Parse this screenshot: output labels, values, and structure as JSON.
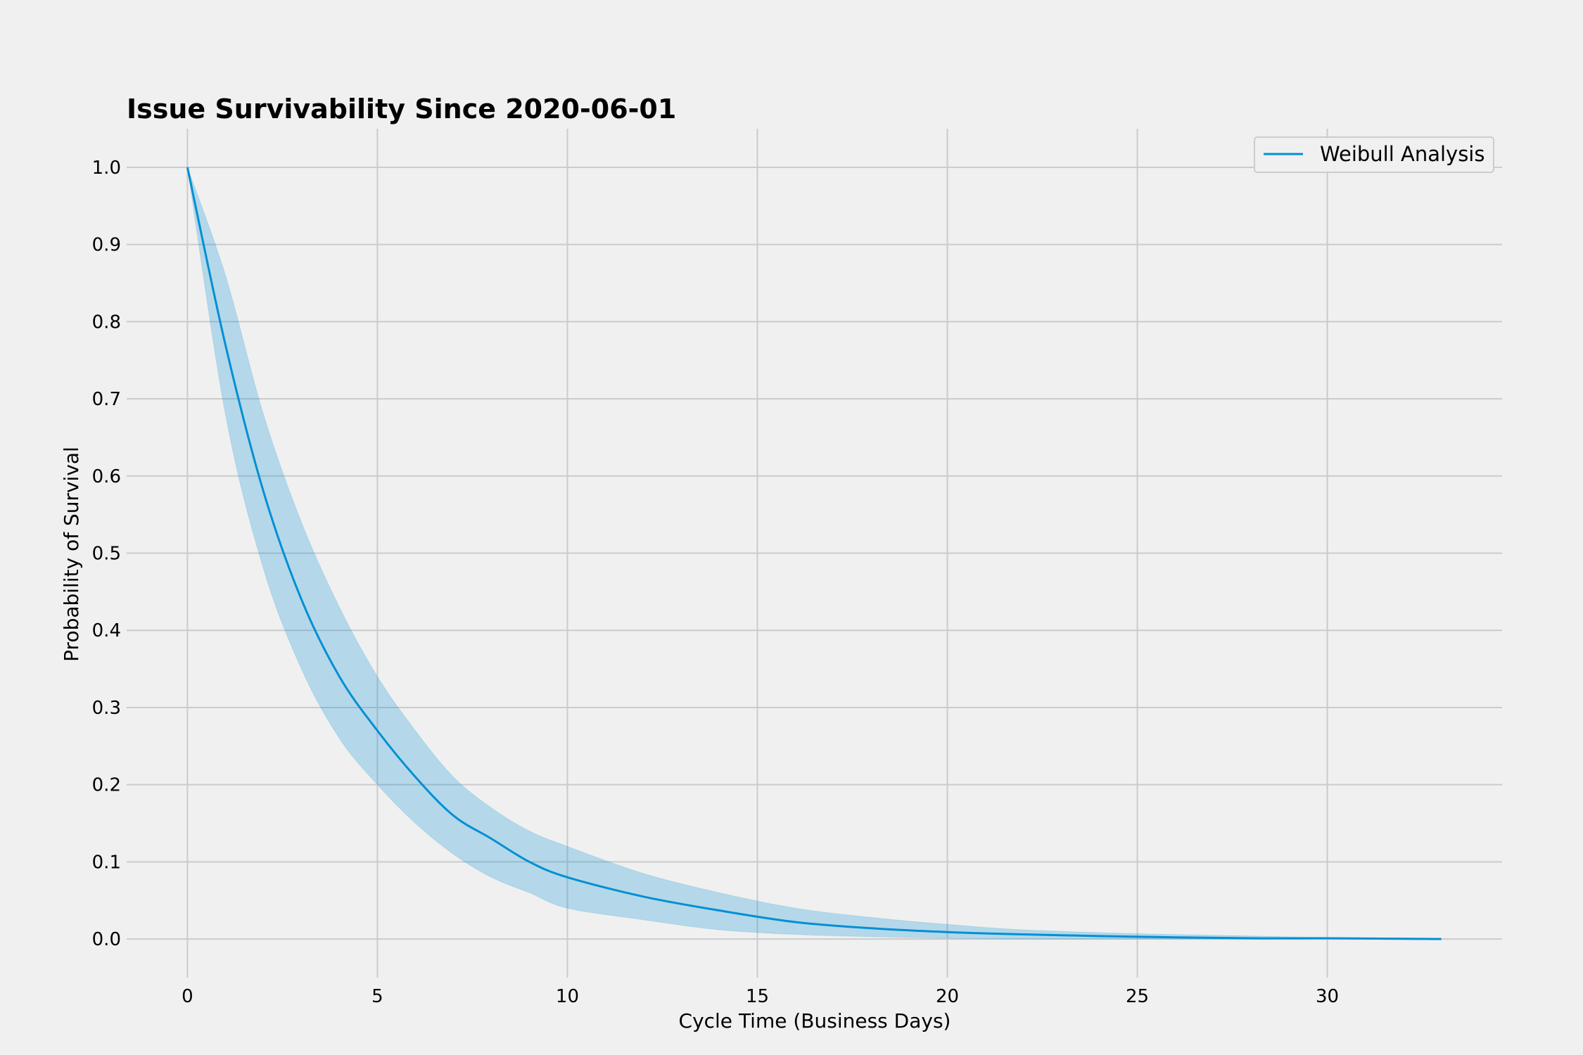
{
  "chart_data": {
    "type": "line",
    "title": "Issue Survivability Since 2020-06-01",
    "xlabel": "Cycle Time (Business Days)",
    "ylabel": "Probability of Survival",
    "xlim": [
      -1.6,
      34.6
    ],
    "ylim": [
      -0.05,
      1.05
    ],
    "xticks": [
      0,
      5,
      10,
      15,
      20,
      25,
      30
    ],
    "xtick_labels": [
      "0",
      "5",
      "10",
      "15",
      "20",
      "25",
      "30"
    ],
    "yticks": [
      0.0,
      0.1,
      0.2,
      0.3,
      0.4,
      0.5,
      0.6,
      0.7,
      0.8,
      0.9,
      1.0
    ],
    "ytick_labels": [
      "0.0",
      "0.1",
      "0.2",
      "0.3",
      "0.4",
      "0.5",
      "0.6",
      "0.7",
      "0.8",
      "0.9",
      "1.0"
    ],
    "grid": true,
    "legend_position": "top-right",
    "series": [
      {
        "name": "Weibull Analysis",
        "color": "#008fd5",
        "x": [
          0,
          1,
          2,
          3,
          4,
          5,
          6,
          7,
          8,
          9,
          10,
          12,
          14,
          16,
          18,
          20,
          22,
          25,
          28,
          30,
          33
        ],
        "y": [
          1.0,
          0.77,
          0.58,
          0.44,
          0.34,
          0.27,
          0.21,
          0.16,
          0.13,
          0.1,
          0.08,
          0.055,
          0.037,
          0.022,
          0.014,
          0.009,
          0.006,
          0.003,
          0.001,
          0.001,
          0.0
        ],
        "band_lower": [
          1.0,
          0.68,
          0.48,
          0.35,
          0.26,
          0.2,
          0.15,
          0.11,
          0.08,
          0.06,
          0.04,
          0.025,
          0.012,
          0.006,
          0.003,
          0.001,
          0.0,
          0.0,
          0.0,
          0.0,
          0.0
        ],
        "band_upper": [
          1.0,
          0.86,
          0.68,
          0.54,
          0.43,
          0.34,
          0.27,
          0.21,
          0.17,
          0.14,
          0.12,
          0.085,
          0.06,
          0.04,
          0.028,
          0.019,
          0.012,
          0.007,
          0.004,
          0.002,
          0.001
        ]
      }
    ]
  }
}
